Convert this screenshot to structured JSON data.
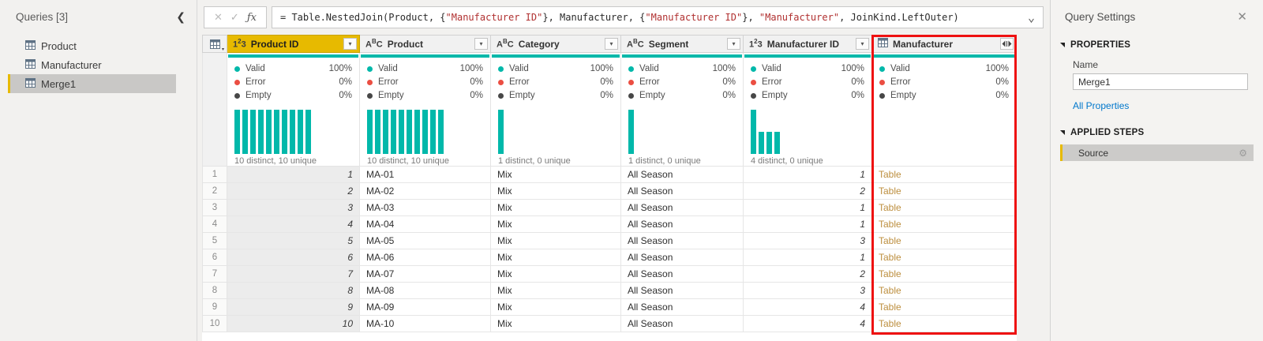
{
  "sidebar": {
    "title": "Queries [3]",
    "items": [
      {
        "label": "Product",
        "selected": false
      },
      {
        "label": "Manufacturer",
        "selected": false
      },
      {
        "label": "Merge1",
        "selected": true
      }
    ]
  },
  "icons": {
    "collapse_pane": "❮",
    "cancel": "✕",
    "accept": "✓",
    "function": "ƒx",
    "formula_dropdown": "⌄",
    "filter_dropdown": "▾",
    "select_all_caret": "▾",
    "close": "✕",
    "gear": "⚙"
  },
  "formula_bar": {
    "segments": [
      {
        "type": "code",
        "text": "= Table.NestedJoin(Product, {"
      },
      {
        "type": "string",
        "text": "\"Manufacturer ID\""
      },
      {
        "type": "code",
        "text": "}, Manufacturer, {"
      },
      {
        "type": "string",
        "text": "\"Manufacturer ID\""
      },
      {
        "type": "code",
        "text": "}, "
      },
      {
        "type": "string",
        "text": "\"Manufacturer\""
      },
      {
        "type": "code",
        "text": ", JoinKind.LeftOuter)"
      }
    ]
  },
  "grid": {
    "stat_labels": {
      "valid": "Valid",
      "error": "Error",
      "empty": "Empty"
    },
    "columns": [
      {
        "name": "Product ID",
        "type": "number",
        "selected": true,
        "highlighted": false,
        "valid": "100%",
        "error": "0%",
        "empty": "0%",
        "distinct_label": "10 distinct, 10 unique",
        "histogram": [
          1,
          1,
          1,
          1,
          1,
          1,
          1,
          1,
          1,
          1
        ]
      },
      {
        "name": "Product",
        "type": "text",
        "selected": false,
        "highlighted": false,
        "valid": "100%",
        "error": "0%",
        "empty": "0%",
        "distinct_label": "10 distinct, 10 unique",
        "histogram": [
          1,
          1,
          1,
          1,
          1,
          1,
          1,
          1,
          1,
          1
        ]
      },
      {
        "name": "Category",
        "type": "text",
        "selected": false,
        "highlighted": false,
        "valid": "100%",
        "error": "0%",
        "empty": "0%",
        "distinct_label": "1 distinct, 0 unique",
        "histogram": [
          1
        ]
      },
      {
        "name": "Segment",
        "type": "text",
        "selected": false,
        "highlighted": false,
        "valid": "100%",
        "error": "0%",
        "empty": "0%",
        "distinct_label": "1 distinct, 0 unique",
        "histogram": [
          1
        ]
      },
      {
        "name": "Manufacturer ID",
        "type": "number",
        "selected": false,
        "highlighted": false,
        "valid": "100%",
        "error": "0%",
        "empty": "0%",
        "distinct_label": "4 distinct, 0 unique",
        "histogram": [
          1,
          0.5,
          0.5,
          0.5
        ]
      },
      {
        "name": "Manufacturer",
        "type": "table",
        "selected": false,
        "highlighted": true,
        "valid": "100%",
        "error": "0%",
        "empty": "0%",
        "distinct_label": "",
        "histogram": []
      }
    ],
    "rows": [
      {
        "num": "1",
        "product_id": "1",
        "product": "MA-01",
        "category": "Mix",
        "segment": "All Season",
        "manufacturer_id": "1",
        "manufacturer": "Table"
      },
      {
        "num": "2",
        "product_id": "2",
        "product": "MA-02",
        "category": "Mix",
        "segment": "All Season",
        "manufacturer_id": "2",
        "manufacturer": "Table"
      },
      {
        "num": "3",
        "product_id": "3",
        "product": "MA-03",
        "category": "Mix",
        "segment": "All Season",
        "manufacturer_id": "1",
        "manufacturer": "Table"
      },
      {
        "num": "4",
        "product_id": "4",
        "product": "MA-04",
        "category": "Mix",
        "segment": "All Season",
        "manufacturer_id": "1",
        "manufacturer": "Table"
      },
      {
        "num": "5",
        "product_id": "5",
        "product": "MA-05",
        "category": "Mix",
        "segment": "All Season",
        "manufacturer_id": "3",
        "manufacturer": "Table"
      },
      {
        "num": "6",
        "product_id": "6",
        "product": "MA-06",
        "category": "Mix",
        "segment": "All Season",
        "manufacturer_id": "1",
        "manufacturer": "Table"
      },
      {
        "num": "7",
        "product_id": "7",
        "product": "MA-07",
        "category": "Mix",
        "segment": "All Season",
        "manufacturer_id": "2",
        "manufacturer": "Table"
      },
      {
        "num": "8",
        "product_id": "8",
        "product": "MA-08",
        "category": "Mix",
        "segment": "All Season",
        "manufacturer_id": "3",
        "manufacturer": "Table"
      },
      {
        "num": "9",
        "product_id": "9",
        "product": "MA-09",
        "category": "Mix",
        "segment": "All Season",
        "manufacturer_id": "4",
        "manufacturer": "Table"
      },
      {
        "num": "10",
        "product_id": "10",
        "product": "MA-10",
        "category": "Mix",
        "segment": "All Season",
        "manufacturer_id": "4",
        "manufacturer": "Table"
      }
    ]
  },
  "query_settings": {
    "title": "Query Settings",
    "properties_header": "PROPERTIES",
    "name_label": "Name",
    "name_value": "Merge1",
    "all_properties_link": "All Properties",
    "applied_steps_header": "APPLIED STEPS",
    "steps": [
      {
        "label": "Source",
        "selected": true
      }
    ]
  },
  "colors": {
    "accent_gold": "#E7BA00",
    "valid_teal": "#01B8AA",
    "error_red": "#EB4E42",
    "empty_dark": "#474747",
    "table_link_gold": "#BD8F3F",
    "highlight_border_red": "#EE1111",
    "link_blue": "#0077CC"
  }
}
